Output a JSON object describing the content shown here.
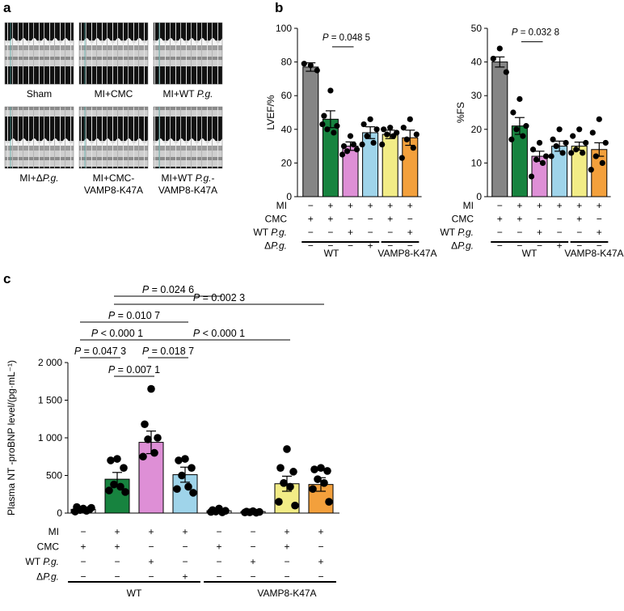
{
  "colors": {
    "sham": "#858585",
    "mi_cmc": "#17833f",
    "mi_wt_pg": "#de8fd6",
    "mi_delta_pg": "#9fd4ea",
    "vamp_mi_cmc": "#f2ec86",
    "vamp_mi_wt_pg": "#f3a03c",
    "plain": "#ffffff"
  },
  "panel_a": {
    "letter": "a",
    "images": [
      {
        "caption": [
          "Sham"
        ]
      },
      {
        "caption": [
          "MI+CMC"
        ]
      },
      {
        "caption": [
          "MI+WT P.g."
        ]
      },
      {
        "caption": [
          "MI+ΔP.g."
        ]
      },
      {
        "caption": [
          "MI+CMC-",
          "VAMP8-K47A"
        ]
      },
      {
        "caption": [
          "MI+WT P.g.-",
          "VAMP8-K47A"
        ]
      }
    ]
  },
  "chart_data": [
    {
      "panel": "b",
      "letter": "b",
      "type": "bar",
      "ylabel": "LVEF/%",
      "ylim": [
        0,
        100
      ],
      "yticks": [
        0,
        20,
        40,
        60,
        80,
        100
      ],
      "groups": [
        "MI",
        "CMC",
        "WT P.g.",
        "ΔP.g."
      ],
      "categories": [
        "Sham",
        "MI+CMC",
        "MI+WT P.g.",
        "MI+ΔP.g.",
        "VAMP8-K47A MI+CMC",
        "VAMP8-K47A MI+WT P.g."
      ],
      "values": [
        77,
        46,
        30,
        38,
        37,
        35
      ],
      "errors": [
        2.5,
        5,
        2.5,
        3.5,
        2.5,
        4.5
      ],
      "points": [
        [
          78,
          79,
          75
        ],
        [
          63,
          48,
          42,
          40,
          38,
          43
        ],
        [
          36,
          30,
          28,
          27,
          31,
          25
        ],
        [
          46,
          43,
          40,
          36,
          32,
          31
        ],
        [
          41,
          40,
          38,
          37,
          36,
          31
        ],
        [
          46,
          41,
          37,
          34,
          29,
          23
        ]
      ],
      "color_keys": [
        "sham",
        "mi_cmc",
        "mi_wt_pg",
        "mi_delta_pg",
        "vamp_mi_cmc",
        "vamp_mi_wt_pg"
      ],
      "matrix": {
        "rows": [
          "MI",
          "CMC",
          "WT P.g.",
          "ΔP.g."
        ],
        "signs": [
          [
            "−",
            "+",
            "+",
            "+",
            "+",
            "+"
          ],
          [
            "+",
            "+",
            "−",
            "−",
            "+",
            "−"
          ],
          [
            "−",
            "−",
            "+",
            "−",
            "−",
            "+"
          ],
          [
            "−",
            "−",
            "−",
            "+",
            "−",
            "−"
          ]
        ]
      },
      "group_labels": [
        "WT",
        "VAMP8-K47A"
      ],
      "annotations": [
        {
          "text": "P = 0.048 5",
          "between": [
            1,
            2
          ],
          "level": 89
        }
      ]
    },
    {
      "panel": "b2",
      "type": "bar",
      "ylabel": "%FS",
      "ylim": [
        0,
        50
      ],
      "yticks": [
        0,
        10,
        20,
        30,
        40,
        50
      ],
      "groups": [
        "MI",
        "CMC",
        "WT P.g.",
        "ΔP.g."
      ],
      "categories": [
        "Sham",
        "MI+CMC",
        "MI+WT P.g.",
        "MI+ΔP.g.",
        "VAMP8-K47A MI+CMC",
        "VAMP8-K47A MI+WT P.g."
      ],
      "values": [
        40,
        21,
        12,
        15,
        15,
        14
      ],
      "errors": [
        1.5,
        2.5,
        1.5,
        1.5,
        1.2,
        2
      ],
      "points": [
        [
          44,
          41,
          37
        ],
        [
          29,
          25,
          21,
          20,
          18,
          17
        ],
        [
          16,
          14,
          12,
          11,
          10,
          6
        ],
        [
          20,
          17,
          16,
          15,
          13,
          12
        ],
        [
          20,
          18,
          16,
          14,
          13,
          13
        ],
        [
          23,
          19,
          16,
          12,
          10,
          8
        ]
      ],
      "color_keys": [
        "sham",
        "mi_cmc",
        "mi_wt_pg",
        "mi_delta_pg",
        "vamp_mi_cmc",
        "vamp_mi_wt_pg"
      ],
      "matrix": {
        "rows": [
          "MI",
          "CMC",
          "WT P.g.",
          "ΔP.g."
        ],
        "signs": [
          [
            "−",
            "+",
            "+",
            "+",
            "+",
            "+"
          ],
          [
            "+",
            "+",
            "−",
            "−",
            "+",
            "−"
          ],
          [
            "−",
            "−",
            "+",
            "−",
            "−",
            "+"
          ],
          [
            "−",
            "−",
            "−",
            "+",
            "−",
            "−"
          ]
        ]
      },
      "group_labels": [
        "WT",
        "VAMP8-K47A"
      ],
      "annotations": [
        {
          "text": "P = 0.032 8",
          "between": [
            1,
            2
          ],
          "level": 46
        }
      ]
    },
    {
      "panel": "c",
      "letter": "c",
      "type": "bar",
      "ylabel": "Plasma NT -proBNP level/(pg·mL⁻¹)",
      "ylim": [
        0,
        2000
      ],
      "yticks": [
        0,
        500,
        1000,
        1500,
        2000
      ],
      "ytick_labels": [
        "0",
        "500",
        "1 000",
        "1 500",
        "2 000"
      ],
      "groups": [
        "MI",
        "CMC",
        "WT P.g.",
        "ΔP.g."
      ],
      "categories": [
        "Sham",
        "MI+CMC",
        "MI+WT P.g.",
        "MI+ΔP.g.",
        "VAMP8-K47A Sham+CMC",
        "VAMP8-K47A Sham+WT P.g.",
        "VAMP8-K47A MI+CMC",
        "VAMP8-K47A MI+WT P.g."
      ],
      "values": [
        50,
        450,
        940,
        510,
        30,
        20,
        390,
        380
      ],
      "errors": [
        15,
        90,
        150,
        100,
        10,
        8,
        100,
        90
      ],
      "points": [
        [
          60,
          80,
          50,
          40,
          30,
          20,
          70
        ],
        [
          720,
          700,
          600,
          380,
          350,
          300,
          280
        ],
        [
          1650,
          1180,
          1000,
          980,
          800,
          750
        ],
        [
          720,
          700,
          600,
          500,
          350,
          320,
          270
        ],
        [
          60,
          40,
          30,
          20,
          10,
          15
        ],
        [
          25,
          20,
          15,
          10,
          5,
          8
        ],
        [
          850,
          600,
          550,
          400,
          350,
          150,
          100
        ],
        [
          600,
          580,
          560,
          450,
          400,
          320,
          150
        ]
      ],
      "color_keys": [
        "plain",
        "mi_cmc",
        "mi_wt_pg",
        "mi_delta_pg",
        "plain",
        "plain",
        "vamp_mi_cmc",
        "vamp_mi_wt_pg"
      ],
      "matrix": {
        "rows": [
          "MI",
          "CMC",
          "WT P.g.",
          "ΔP.g."
        ],
        "signs": [
          [
            "−",
            "+",
            "+",
            "+",
            "−",
            "−",
            "+",
            "+"
          ],
          [
            "+",
            "+",
            "−",
            "−",
            "+",
            "−",
            "+",
            "−"
          ],
          [
            "−",
            "−",
            "+",
            "−",
            "−",
            "+",
            "−",
            "+"
          ],
          [
            "−",
            "−",
            "−",
            "+",
            "−",
            "−",
            "−",
            "−"
          ]
        ]
      },
      "group_labels": [
        "WT",
        "VAMP8-K47A"
      ],
      "annotations": [
        {
          "text": "P = 0.007 1",
          "between": [
            1,
            2
          ]
        },
        {
          "text": "P = 0.047 3",
          "between": [
            0,
            1
          ]
        },
        {
          "text": "P = 0.018 7",
          "between": [
            2,
            3
          ]
        },
        {
          "text": "P < 0.000 1",
          "between": [
            0,
            2
          ]
        },
        {
          "text": "P < 0.000 1",
          "between": [
            2,
            6
          ]
        },
        {
          "text": "P = 0.010 7",
          "between": [
            0,
            3
          ]
        },
        {
          "text": "P = 0.002 3",
          "between": [
            1,
            7
          ]
        },
        {
          "text": "P = 0.024 6",
          "between": [
            1,
            4
          ]
        }
      ]
    }
  ]
}
